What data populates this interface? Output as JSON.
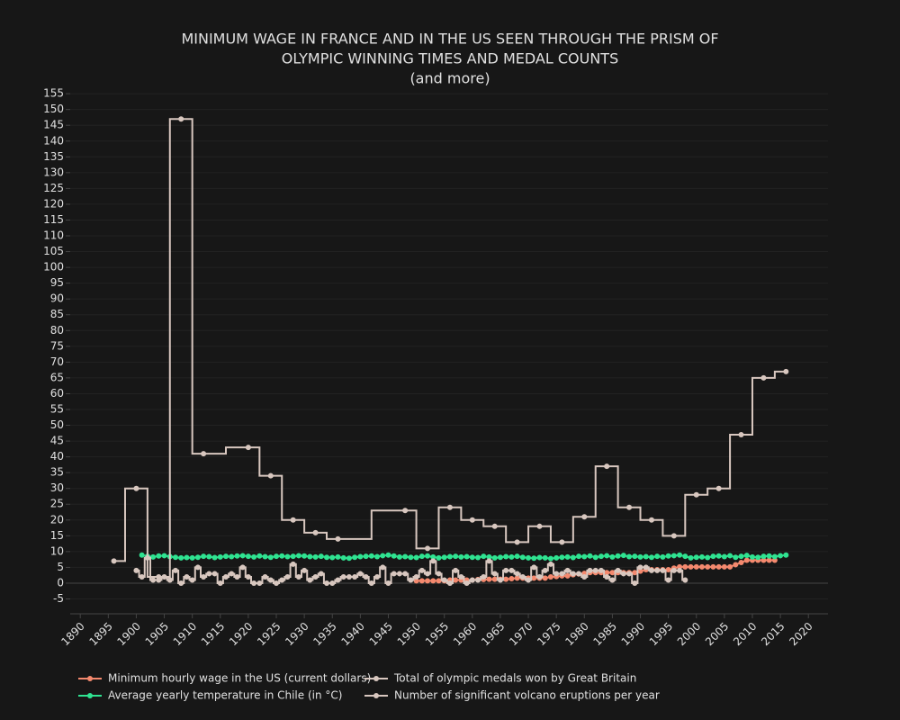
{
  "chart_data": {
    "type": "line",
    "title": [
      "MINIMUM WAGE IN FRANCE AND IN THE US SEEN THROUGH THE PRISM OF",
      "OLYMPIC WINNING TIMES AND MEDAL COUNTS",
      "(and more)"
    ],
    "xlim": [
      1888.2,
      2023.5
    ],
    "xticks": [
      1890,
      1895,
      1900,
      1905,
      1910,
      1915,
      1920,
      1925,
      1930,
      1935,
      1940,
      1945,
      1950,
      1955,
      1960,
      1965,
      1970,
      1975,
      1980,
      1985,
      1990,
      1995,
      2000,
      2005,
      2010,
      2015,
      2020
    ],
    "ylim": [
      -9.7,
      157.6
    ],
    "yticks": [
      -5,
      0,
      5,
      10,
      15,
      20,
      25,
      30,
      35,
      40,
      45,
      50,
      55,
      60,
      65,
      70,
      75,
      80,
      85,
      90,
      95,
      100,
      105,
      110,
      115,
      120,
      125,
      130,
      135,
      140,
      145,
      150,
      155
    ],
    "grid": true,
    "legend": "bottom",
    "series": [
      {
        "name": "Minimum hourly wage in the US (current dollars)",
        "color": "#f4896e",
        "line_shape": "linear",
        "x": [
          1950,
          1951,
          1952,
          1953,
          1954,
          1955,
          1956,
          1957,
          1958,
          1959,
          1960,
          1961,
          1962,
          1963,
          1964,
          1965,
          1966,
          1967,
          1968,
          1969,
          1970,
          1971,
          1972,
          1973,
          1974,
          1975,
          1976,
          1977,
          1978,
          1979,
          1980,
          1981,
          1982,
          1983,
          1984,
          1985,
          1986,
          1987,
          1988,
          1989,
          1990,
          1991,
          1992,
          1993,
          1994,
          1995,
          1996,
          1997,
          1998,
          1999,
          2000,
          2001,
          2002,
          2003,
          2004,
          2005,
          2006,
          2007,
          2008,
          2009,
          2010,
          2011,
          2012,
          2013,
          2014
        ],
        "values": [
          0.75,
          0.75,
          0.75,
          0.75,
          0.75,
          0.75,
          1.0,
          1.0,
          1.0,
          1.0,
          1.0,
          1.15,
          1.15,
          1.25,
          1.25,
          1.25,
          1.25,
          1.4,
          1.6,
          1.6,
          1.6,
          1.6,
          1.6,
          1.6,
          2.0,
          2.1,
          2.3,
          2.3,
          2.65,
          2.9,
          3.1,
          3.35,
          3.35,
          3.35,
          3.35,
          3.35,
          3.35,
          3.35,
          3.35,
          3.35,
          3.8,
          4.25,
          4.25,
          4.25,
          4.25,
          4.25,
          4.75,
          5.15,
          5.15,
          5.15,
          5.15,
          5.15,
          5.15,
          5.15,
          5.15,
          5.15,
          5.15,
          5.85,
          6.55,
          7.25,
          7.25,
          7.25,
          7.25,
          7.25,
          7.25
        ]
      },
      {
        "name": "Average yearly temperature in Chile (in °C)",
        "color": "#2fe391",
        "line_shape": "linear",
        "x": [
          1901,
          1902,
          1903,
          1904,
          1905,
          1906,
          1907,
          1908,
          1909,
          1910,
          1911,
          1912,
          1913,
          1914,
          1915,
          1916,
          1917,
          1918,
          1919,
          1920,
          1921,
          1922,
          1923,
          1924,
          1925,
          1926,
          1927,
          1928,
          1929,
          1930,
          1931,
          1932,
          1933,
          1934,
          1935,
          1936,
          1937,
          1938,
          1939,
          1940,
          1941,
          1942,
          1943,
          1944,
          1945,
          1946,
          1947,
          1948,
          1949,
          1950,
          1951,
          1952,
          1953,
          1954,
          1955,
          1956,
          1957,
          1958,
          1959,
          1960,
          1961,
          1962,
          1963,
          1964,
          1965,
          1966,
          1967,
          1968,
          1969,
          1970,
          1971,
          1972,
          1973,
          1974,
          1975,
          1976,
          1977,
          1978,
          1979,
          1980,
          1981,
          1982,
          1983,
          1984,
          1985,
          1986,
          1987,
          1988,
          1989,
          1990,
          1991,
          1992,
          1993,
          1994,
          1995,
          1996,
          1997,
          1998,
          1999,
          2000,
          2001,
          2002,
          2003,
          2004,
          2005,
          2006,
          2007,
          2008,
          2009,
          2010,
          2011,
          2012,
          2013,
          2014,
          2015,
          2016
        ],
        "values": [
          8.9,
          8.5,
          8.3,
          8.6,
          8.7,
          8.4,
          8.2,
          8.0,
          8.1,
          8.0,
          8.2,
          8.5,
          8.4,
          8.1,
          8.3,
          8.5,
          8.4,
          8.6,
          8.7,
          8.5,
          8.3,
          8.6,
          8.4,
          8.2,
          8.5,
          8.6,
          8.4,
          8.5,
          8.7,
          8.6,
          8.4,
          8.3,
          8.5,
          8.2,
          8.1,
          8.3,
          8.0,
          7.9,
          8.2,
          8.4,
          8.5,
          8.6,
          8.4,
          8.7,
          8.9,
          8.6,
          8.3,
          8.4,
          8.2,
          8.1,
          8.5,
          8.6,
          8.3,
          8.0,
          8.2,
          8.4,
          8.5,
          8.3,
          8.4,
          8.2,
          8.1,
          8.5,
          8.3,
          8.0,
          8.2,
          8.4,
          8.3,
          8.5,
          8.2,
          8.0,
          7.9,
          8.1,
          8.0,
          7.8,
          8.0,
          8.2,
          8.3,
          8.1,
          8.5,
          8.4,
          8.6,
          8.2,
          8.5,
          8.7,
          8.3,
          8.6,
          8.8,
          8.4,
          8.5,
          8.3,
          8.4,
          8.2,
          8.5,
          8.3,
          8.6,
          8.7,
          8.9,
          8.5,
          8.0,
          8.2,
          8.3,
          8.1,
          8.5,
          8.6,
          8.4,
          8.7,
          8.2,
          8.5,
          8.8,
          8.3,
          8.2,
          8.5,
          8.6,
          8.4,
          8.7,
          8.9
        ]
      },
      {
        "name": "Total of olympic medals won by Great Britain",
        "color": "#d8c7bf",
        "line_shape": "hvh",
        "x": [
          1896,
          1900,
          1904,
          1908,
          1912,
          1920,
          1924,
          1928,
          1932,
          1936,
          1948,
          1952,
          1956,
          1960,
          1964,
          1968,
          1972,
          1976,
          1980,
          1984,
          1988,
          1992,
          1996,
          2000,
          2004,
          2008,
          2012,
          2016
        ],
        "values": [
          7,
          30,
          2,
          147,
          41,
          43,
          34,
          20,
          16,
          14,
          23,
          11,
          24,
          20,
          18,
          13,
          18,
          13,
          21,
          37,
          24,
          20,
          15,
          28,
          30,
          47,
          65,
          67
        ]
      },
      {
        "name": "Number of significant volcano eruptions per year",
        "color": "#d8c7bf",
        "line_shape": "hvh",
        "x": [
          1900,
          1901,
          1902,
          1903,
          1904,
          1905,
          1906,
          1907,
          1908,
          1909,
          1910,
          1911,
          1912,
          1913,
          1914,
          1915,
          1916,
          1917,
          1918,
          1919,
          1920,
          1921,
          1922,
          1923,
          1924,
          1925,
          1926,
          1927,
          1928,
          1929,
          1930,
          1931,
          1932,
          1933,
          1934,
          1935,
          1936,
          1937,
          1938,
          1939,
          1940,
          1941,
          1942,
          1943,
          1944,
          1945,
          1946,
          1947,
          1948,
          1949,
          1950,
          1951,
          1952,
          1953,
          1954,
          1955,
          1956,
          1957,
          1958,
          1959,
          1960,
          1961,
          1962,
          1963,
          1964,
          1965,
          1966,
          1967,
          1968,
          1969,
          1970,
          1971,
          1972,
          1973,
          1974,
          1975,
          1976,
          1977,
          1978,
          1979,
          1980,
          1981,
          1982,
          1983,
          1984,
          1985,
          1986,
          1987,
          1988,
          1989,
          1990,
          1991,
          1992,
          1993,
          1994,
          1995,
          1996,
          1997,
          1998
        ],
        "values": [
          4,
          2,
          8,
          1,
          1,
          2,
          1,
          4,
          0,
          2,
          1,
          5,
          2,
          3,
          3,
          0,
          2,
          3,
          2,
          5,
          2,
          0,
          0,
          2,
          1,
          0,
          1,
          2,
          6,
          2,
          4,
          1,
          2,
          3,
          0,
          0,
          1,
          2,
          2,
          2,
          3,
          2,
          0,
          2,
          5,
          0,
          3,
          3,
          3,
          1,
          2,
          4,
          3,
          7,
          3,
          1,
          0,
          4,
          2,
          0,
          1,
          1,
          2,
          7,
          3,
          1,
          4,
          4,
          3,
          2,
          1,
          5,
          2,
          4,
          6,
          3,
          3,
          4,
          3,
          3,
          2,
          4,
          4,
          4,
          2,
          1,
          4,
          3,
          3,
          0,
          5,
          5,
          4,
          4,
          4,
          1,
          4,
          4,
          1
        ]
      }
    ]
  }
}
